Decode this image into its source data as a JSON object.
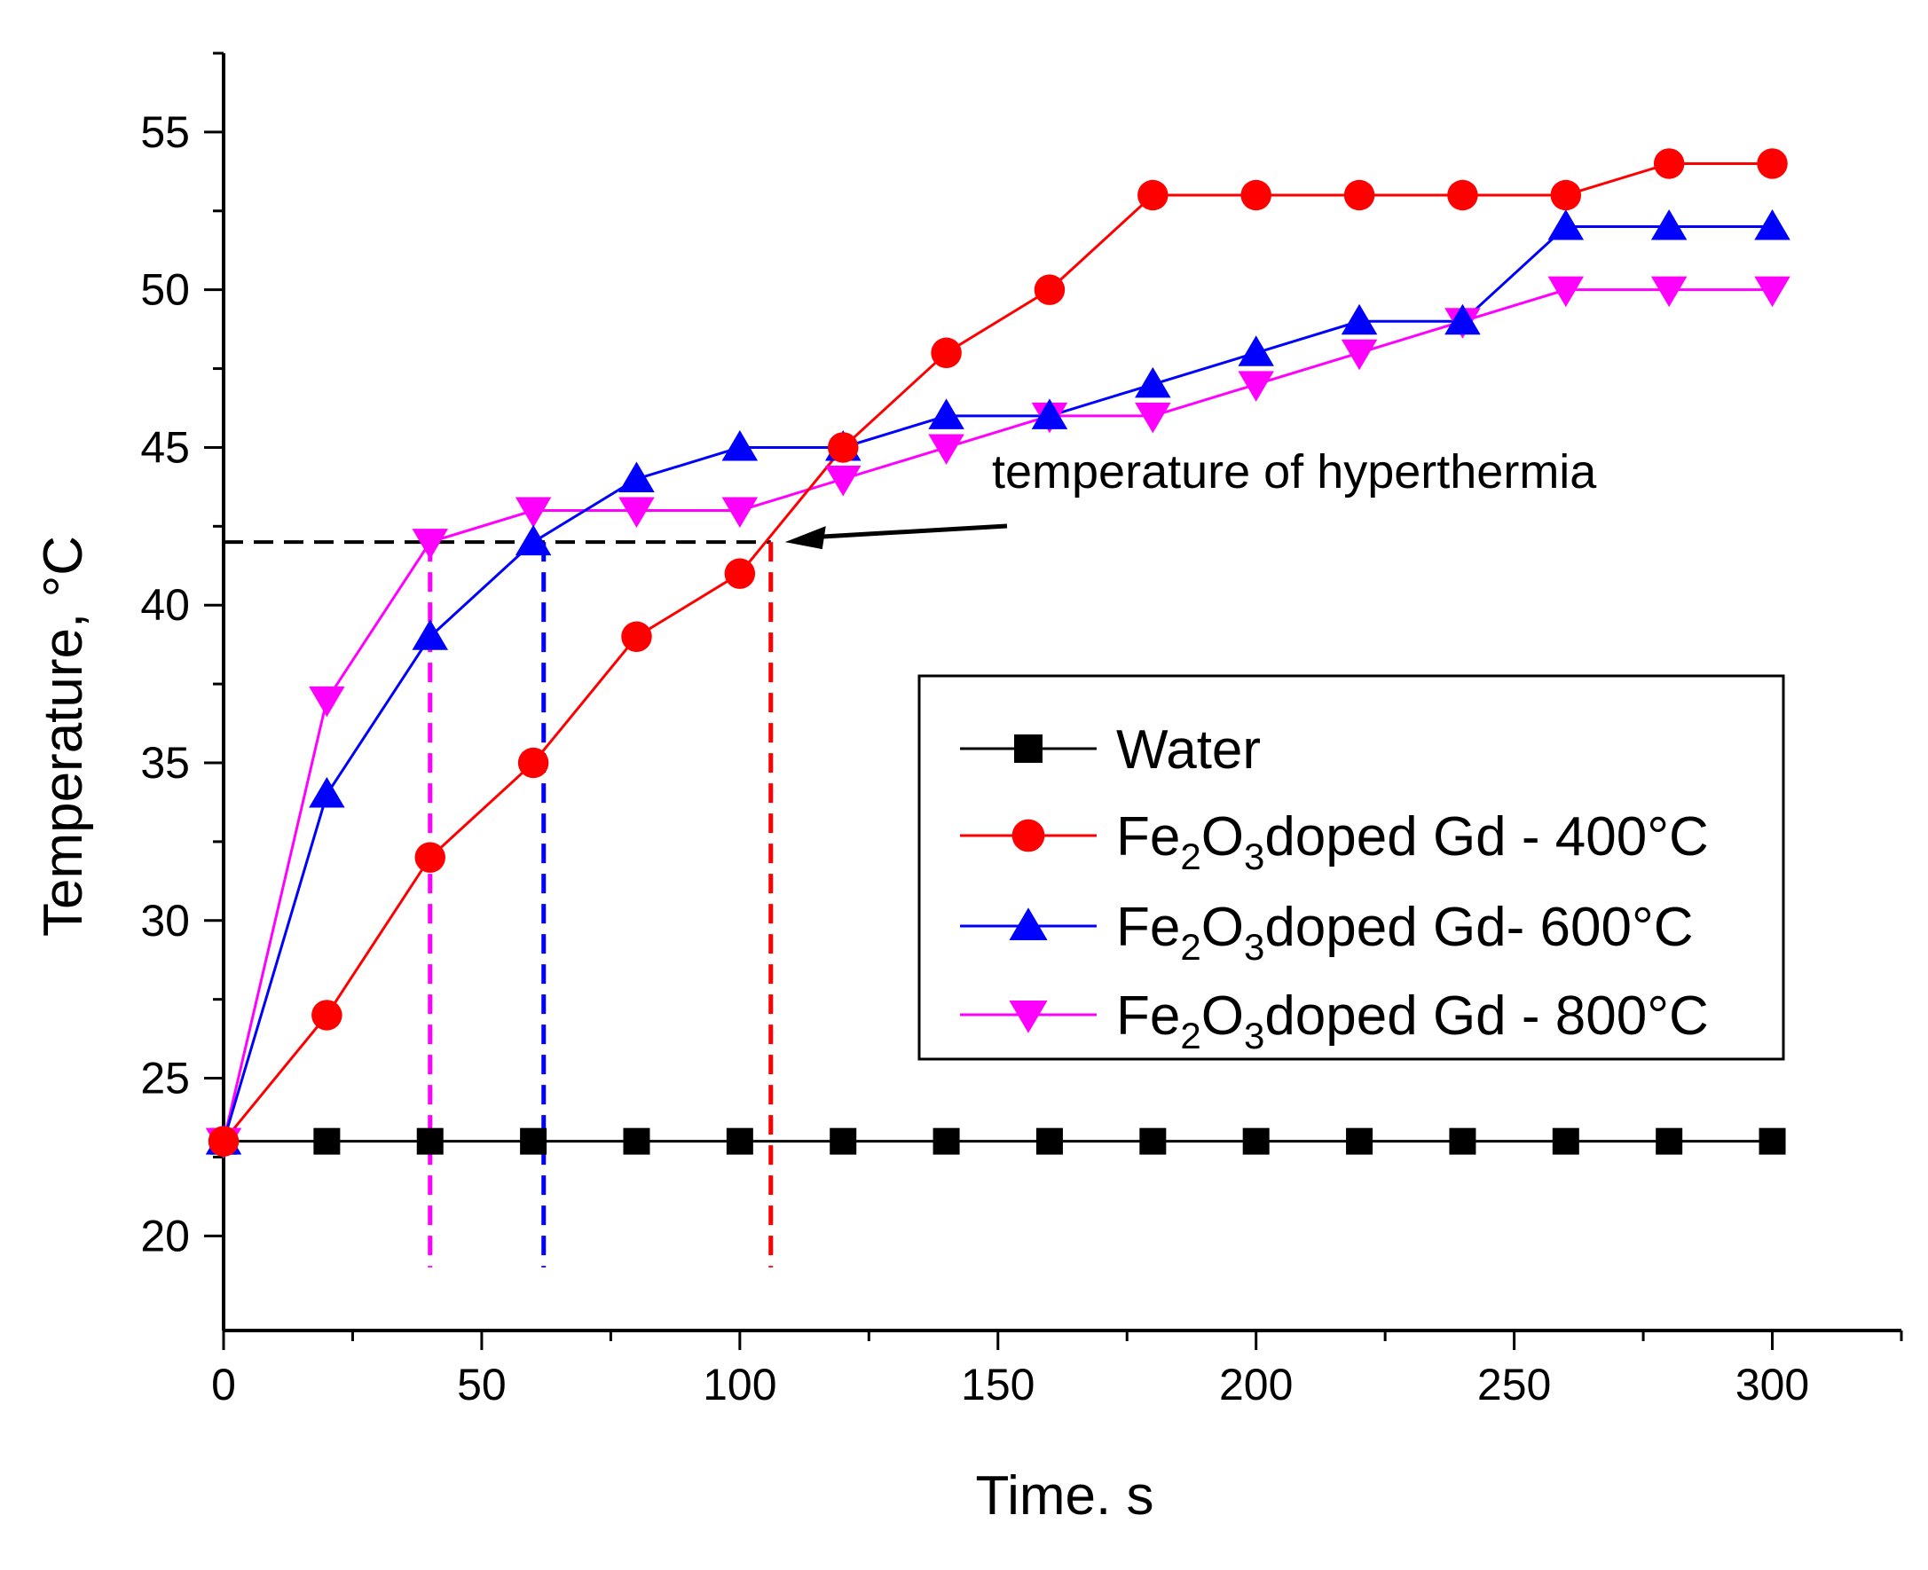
{
  "chart_data": {
    "type": "line",
    "title": "",
    "xlabel": "Time. s",
    "ylabel": "Temperature, °C",
    "xlim": [
      0,
      325
    ],
    "ylim": [
      17,
      57.5
    ],
    "xticks": [
      0,
      50,
      100,
      150,
      200,
      250,
      300
    ],
    "yticks": [
      20,
      25,
      30,
      35,
      40,
      45,
      50,
      55
    ],
    "x": [
      0,
      20,
      40,
      60,
      80,
      100,
      120,
      140,
      160,
      180,
      200,
      220,
      240,
      260,
      280,
      300
    ],
    "series": [
      {
        "name": "Water",
        "legend": {
          "main": "Water"
        },
        "color": "#000000",
        "marker": "square",
        "values": [
          23,
          23,
          23,
          23,
          23,
          23,
          23,
          23,
          23,
          23,
          23,
          23,
          23,
          23,
          23,
          23
        ]
      },
      {
        "name": "Fe2O3doped Gd - 400°C",
        "legend": {
          "base": "Fe",
          "sub1": "2",
          "mid": "O",
          "sub2": "3",
          "rest": "doped Gd - 400°C"
        },
        "color": "#ff0000",
        "marker": "circle",
        "values": [
          23,
          27,
          32,
          35,
          39,
          41,
          45,
          48,
          50,
          53,
          53,
          53,
          53,
          53,
          54,
          54
        ]
      },
      {
        "name": "Fe2O3doped Gd- 600°C",
        "legend": {
          "base": "Fe",
          "sub1": "2",
          "mid": "O",
          "sub2": "3",
          "rest": "doped Gd- 600°C"
        },
        "color": "#0000ff",
        "marker": "triangle-up",
        "values": [
          23,
          34,
          39,
          42,
          44,
          45,
          45,
          46,
          46,
          47,
          48,
          49,
          49,
          52,
          52,
          52
        ]
      },
      {
        "name": "Fe2O3doped Gd - 800°C",
        "legend": {
          "base": "Fe",
          "sub1": "2",
          "mid": "O",
          "sub2": "3",
          "rest": "doped Gd - 800°C"
        },
        "color": "#ff00ff",
        "marker": "triangle-down",
        "values": [
          23,
          37,
          42,
          43,
          43,
          43,
          44,
          45,
          46,
          46,
          47,
          48,
          49,
          50,
          50,
          50
        ]
      }
    ],
    "annotation": {
      "text": "temperature of hyperthermia",
      "threshold_temperature": 42,
      "threshold_color": "#000000"
    },
    "threshold_crossings": [
      {
        "series": "Fe2O3doped Gd - 800°C",
        "time": 40,
        "color": "#ff00ff"
      },
      {
        "series": "Fe2O3doped Gd- 600°C",
        "time": 62,
        "color": "#0000ff"
      },
      {
        "series": "Fe2O3doped Gd - 400°C",
        "time": 106,
        "color": "#ff0000"
      }
    ],
    "legend_position": "center-right",
    "grid": false
  }
}
